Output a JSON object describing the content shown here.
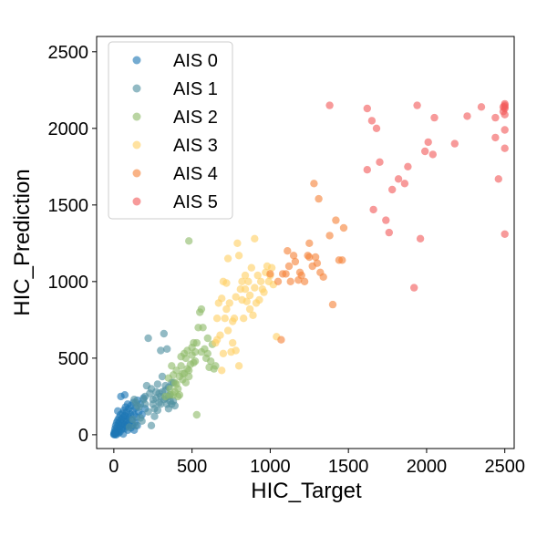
{
  "chart_data": {
    "type": "scatter",
    "title": "",
    "xlabel": "HIC_Target",
    "ylabel": "HIC_Prediction",
    "xlim": [
      -110,
      2560
    ],
    "ylim": [
      -90,
      2600
    ],
    "xticks": [
      0,
      500,
      1000,
      1500,
      2000,
      2500
    ],
    "yticks": [
      0,
      500,
      1000,
      1500,
      2000,
      2500
    ],
    "grid": false,
    "legend_position": "upper-left",
    "series": [
      {
        "name": "AIS 0",
        "color": "#1f77b4",
        "points": [
          [
            2,
            5
          ],
          [
            5,
            20
          ],
          [
            8,
            40
          ],
          [
            10,
            10
          ],
          [
            12,
            60
          ],
          [
            15,
            30
          ],
          [
            18,
            80
          ],
          [
            20,
            15
          ],
          [
            22,
            50
          ],
          [
            25,
            95
          ],
          [
            28,
            25
          ],
          [
            30,
            70
          ],
          [
            33,
            110
          ],
          [
            35,
            45
          ],
          [
            38,
            85
          ],
          [
            40,
            20
          ],
          [
            42,
            130
          ],
          [
            45,
            60
          ],
          [
            48,
            100
          ],
          [
            50,
            35
          ],
          [
            52,
            75
          ],
          [
            55,
            140
          ],
          [
            58,
            50
          ],
          [
            60,
            115
          ],
          [
            62,
            90
          ],
          [
            65,
            160
          ],
          [
            68,
            40
          ],
          [
            70,
            125
          ],
          [
            72,
            65
          ],
          [
            75,
            180
          ],
          [
            78,
            100
          ],
          [
            80,
            55
          ],
          [
            82,
            150
          ],
          [
            85,
            85
          ],
          [
            88,
            200
          ],
          [
            90,
            120
          ],
          [
            92,
            70
          ],
          [
            95,
            170
          ],
          [
            98,
            110
          ],
          [
            100,
            60
          ],
          [
            105,
            135
          ],
          [
            110,
            190
          ],
          [
            115,
            95
          ],
          [
            120,
            155
          ],
          [
            125,
            210
          ],
          [
            130,
            130
          ],
          [
            135,
            80
          ],
          [
            140,
            175
          ],
          [
            145,
            115
          ],
          [
            150,
            225
          ],
          [
            160,
            150
          ],
          [
            170,
            200
          ],
          [
            180,
            130
          ],
          [
            190,
            240
          ],
          [
            200,
            170
          ],
          [
            25,
            155
          ],
          [
            45,
            250
          ],
          [
            70,
            260
          ],
          [
            120,
            60
          ],
          [
            150,
            60
          ],
          [
            30,
            10
          ],
          [
            15,
            0
          ],
          [
            6,
            2
          ],
          [
            3,
            12
          ],
          [
            1,
            1
          ],
          [
            60,
            5
          ],
          [
            90,
            30
          ],
          [
            110,
            45
          ],
          [
            130,
            30
          ]
        ]
      },
      {
        "name": "AIS 1",
        "color": "#4f8fa0",
        "points": [
          [
            100,
            50
          ],
          [
            120,
            100
          ],
          [
            140,
            60
          ],
          [
            160,
            180
          ],
          [
            180,
            90
          ],
          [
            200,
            250
          ],
          [
            220,
            150
          ],
          [
            240,
            300
          ],
          [
            250,
            200
          ],
          [
            260,
            120
          ],
          [
            270,
            280
          ],
          [
            280,
            330
          ],
          [
            290,
            210
          ],
          [
            300,
            250
          ],
          [
            310,
            380
          ],
          [
            320,
            230
          ],
          [
            330,
            290
          ],
          [
            340,
            200
          ],
          [
            350,
            310
          ],
          [
            360,
            260
          ],
          [
            370,
            340
          ],
          [
            380,
            220
          ],
          [
            390,
            190
          ],
          [
            210,
            320
          ],
          [
            230,
            270
          ],
          [
            250,
            230
          ],
          [
            270,
            240
          ],
          [
            290,
            270
          ],
          [
            310,
            280
          ],
          [
            330,
            320
          ],
          [
            350,
            250
          ],
          [
            360,
            220
          ],
          [
            370,
            200
          ],
          [
            320,
            660
          ],
          [
            340,
            560
          ],
          [
            300,
            550
          ],
          [
            220,
            630
          ],
          [
            240,
            60
          ],
          [
            190,
            230
          ],
          [
            170,
            110
          ],
          [
            260,
            170
          ],
          [
            280,
            160
          ],
          [
            300,
            200
          ],
          [
            150,
            190
          ],
          [
            140,
            210
          ],
          [
            130,
            230
          ],
          [
            350,
            170
          ],
          [
            380,
            340
          ],
          [
            330,
            240
          ],
          [
            200,
            200
          ]
        ]
      },
      {
        "name": "AIS 2",
        "color": "#8fbc6a",
        "points": [
          [
            330,
            250
          ],
          [
            350,
            370
          ],
          [
            360,
            300
          ],
          [
            370,
            450
          ],
          [
            380,
            260
          ],
          [
            390,
            340
          ],
          [
            400,
            420
          ],
          [
            410,
            300
          ],
          [
            420,
            380
          ],
          [
            430,
            450
          ],
          [
            440,
            360
          ],
          [
            450,
            400
          ],
          [
            460,
            500
          ],
          [
            470,
            430
          ],
          [
            480,
            380
          ],
          [
            490,
            460
          ],
          [
            500,
            520
          ],
          [
            510,
            470
          ],
          [
            520,
            540
          ],
          [
            530,
            600
          ],
          [
            540,
            700
          ],
          [
            550,
            800
          ],
          [
            560,
            540
          ],
          [
            570,
            700
          ],
          [
            580,
            560
          ],
          [
            590,
            500
          ],
          [
            600,
            630
          ],
          [
            610,
            440
          ],
          [
            620,
            480
          ],
          [
            630,
            590
          ],
          [
            640,
            430
          ],
          [
            480,
            1265
          ],
          [
            530,
            130
          ],
          [
            560,
            820
          ],
          [
            420,
            260
          ],
          [
            400,
            330
          ],
          [
            440,
            400
          ],
          [
            460,
            340
          ],
          [
            500,
            570
          ],
          [
            520,
            480
          ],
          [
            600,
            530
          ],
          [
            480,
            420
          ],
          [
            450,
            530
          ],
          [
            430,
            510
          ],
          [
            470,
            550
          ],
          [
            510,
            600
          ],
          [
            380,
            390
          ],
          [
            360,
            260
          ],
          [
            390,
            280
          ],
          [
            410,
            250
          ],
          [
            650,
            450
          ]
        ]
      },
      {
        "name": "AIS 3",
        "color": "#ffd166",
        "points": [
          [
            650,
            600
          ],
          [
            660,
            760
          ],
          [
            670,
            860
          ],
          [
            680,
            650
          ],
          [
            690,
            890
          ],
          [
            700,
            1000
          ],
          [
            710,
            760
          ],
          [
            720,
            820
          ],
          [
            730,
            680
          ],
          [
            740,
            860
          ],
          [
            750,
            540
          ],
          [
            760,
            600
          ],
          [
            770,
            760
          ],
          [
            780,
            900
          ],
          [
            790,
            1250
          ],
          [
            800,
            1170
          ],
          [
            810,
            950
          ],
          [
            820,
            880
          ],
          [
            830,
            760
          ],
          [
            840,
            1040
          ],
          [
            850,
            870
          ],
          [
            860,
            1000
          ],
          [
            870,
            910
          ],
          [
            880,
            1090
          ],
          [
            890,
            780
          ],
          [
            900,
            960
          ],
          [
            910,
            860
          ],
          [
            920,
            1040
          ],
          [
            930,
            880
          ],
          [
            940,
            1000
          ],
          [
            950,
            950
          ],
          [
            960,
            930
          ],
          [
            970,
            1060
          ],
          [
            980,
            1100
          ],
          [
            990,
            1000
          ],
          [
            1000,
            1040
          ],
          [
            1010,
            1090
          ],
          [
            1020,
            980
          ],
          [
            1040,
            640
          ],
          [
            730,
            1150
          ],
          [
            760,
            740
          ],
          [
            700,
            530
          ],
          [
            660,
            620
          ],
          [
            720,
            990
          ],
          [
            800,
            450
          ],
          [
            780,
            550
          ],
          [
            690,
            420
          ],
          [
            840,
            950
          ],
          [
            900,
            1280
          ],
          [
            870,
            820
          ],
          [
            820,
            1000
          ]
        ]
      },
      {
        "name": "AIS 4",
        "color": "#f5843c",
        "points": [
          [
            1000,
            1050
          ],
          [
            1050,
            1000
          ],
          [
            1080,
            1050
          ],
          [
            1100,
            1050
          ],
          [
            1110,
            1200
          ],
          [
            1120,
            1100
          ],
          [
            1130,
            1000
          ],
          [
            1150,
            1170
          ],
          [
            1160,
            1130
          ],
          [
            1180,
            1010
          ],
          [
            1200,
            1040
          ],
          [
            1220,
            1000
          ],
          [
            1240,
            1170
          ],
          [
            1250,
            1160
          ],
          [
            1270,
            1100
          ],
          [
            1290,
            1160
          ],
          [
            1300,
            1120
          ],
          [
            1320,
            1060
          ],
          [
            1340,
            1030
          ],
          [
            1380,
            1300
          ],
          [
            1400,
            850
          ],
          [
            1420,
            1400
          ],
          [
            1440,
            1140
          ],
          [
            1460,
            1140
          ],
          [
            1470,
            1350
          ],
          [
            1280,
            1640
          ],
          [
            1310,
            1540
          ],
          [
            1070,
            620
          ],
          [
            1250,
            1250
          ],
          [
            1190,
            1060
          ]
        ]
      },
      {
        "name": "AIS 5",
        "color": "#f25c5c",
        "points": [
          [
            1380,
            2150
          ],
          [
            1620,
            2130
          ],
          [
            1650,
            2050
          ],
          [
            1680,
            2000
          ],
          [
            1620,
            1730
          ],
          [
            1660,
            1470
          ],
          [
            1700,
            1780
          ],
          [
            1740,
            1400
          ],
          [
            1760,
            1320
          ],
          [
            1780,
            1600
          ],
          [
            1820,
            1670
          ],
          [
            1860,
            1640
          ],
          [
            1880,
            1750
          ],
          [
            1920,
            960
          ],
          [
            1940,
            2150
          ],
          [
            1960,
            1280
          ],
          [
            1990,
            1850
          ],
          [
            2010,
            1910
          ],
          [
            2040,
            1830
          ],
          [
            2050,
            2070
          ],
          [
            2180,
            1900
          ],
          [
            2260,
            2080
          ],
          [
            2350,
            2140
          ],
          [
            2440,
            2070
          ],
          [
            2440,
            1940
          ],
          [
            2460,
            1670
          ],
          [
            2490,
            2110
          ],
          [
            2500,
            2150
          ],
          [
            2500,
            2160
          ],
          [
            2500,
            2140
          ],
          [
            2500,
            2130
          ],
          [
            2500,
            2090
          ],
          [
            2500,
            1990
          ],
          [
            2500,
            1870
          ],
          [
            2500,
            1310
          ],
          [
            2490,
            2140
          ]
        ]
      }
    ]
  }
}
